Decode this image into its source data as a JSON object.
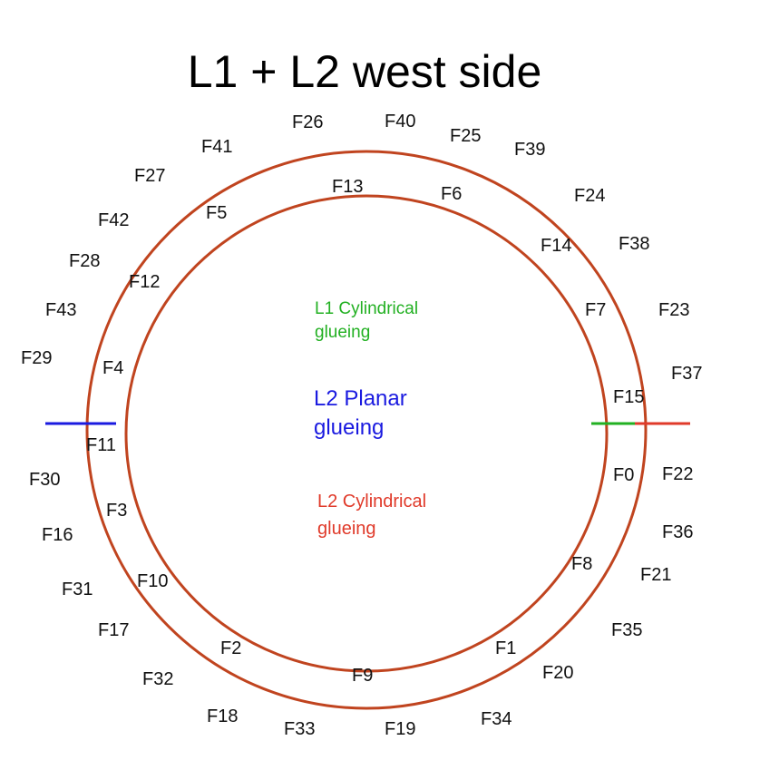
{
  "title": "L1 + L2 west side",
  "colors": {
    "ring": "#c0441f",
    "l1_cylindrical": "#22b022",
    "l2_planar": "#1a1ae0",
    "l2_cylindrical": "#e03a2a"
  },
  "legend": {
    "l1_cylindrical": [
      "L1 Cylindrical",
      "glueing"
    ],
    "l2_planar": [
      "L2 Planar",
      "glueing"
    ],
    "l2_cylindrical": [
      "L2 Cylindrical",
      "glueing"
    ]
  },
  "outer_labels": [
    "F26",
    "F40",
    "F25",
    "F39",
    "F41",
    "F27",
    "F24",
    "F42",
    "F38",
    "F28",
    "F43",
    "F23",
    "F29",
    "F37",
    "F30",
    "F22",
    "F16",
    "F36",
    "F31",
    "F21",
    "F17",
    "F35",
    "F32",
    "F20",
    "F18",
    "F33",
    "F19",
    "F34"
  ],
  "middle_labels": [
    "F13",
    "F6",
    "F5",
    "F14",
    "F12",
    "F7",
    "F4",
    "F15",
    "F11",
    "F0",
    "F3",
    "F8",
    "F10",
    "F2",
    "F1",
    "F9"
  ]
}
